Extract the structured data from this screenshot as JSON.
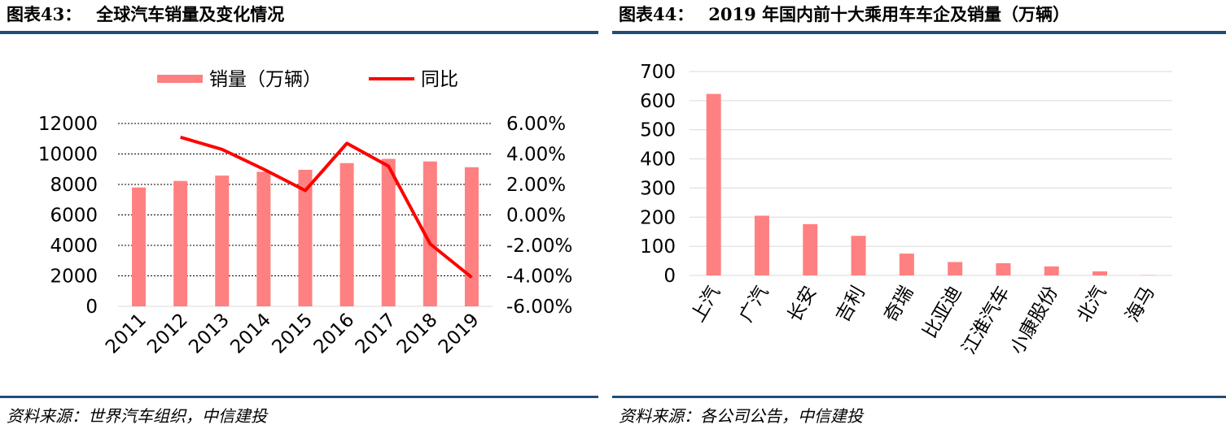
{
  "charts": [
    {
      "label": "图表43：",
      "title": "全球汽车销量及变化情况",
      "source": "资料来源：世界汽车组织，中信建投"
    },
    {
      "label": "图表44：",
      "title": "2019 年国内前十大乘用车车企及销量（万辆）",
      "source": "资料来源：各公司公告，中信建投"
    }
  ],
  "colors": {
    "bar": "#ff8080",
    "line": "#ff0000",
    "rule": "#1f4e79",
    "grid": "#000000"
  },
  "chart_data": [
    {
      "type": "bar",
      "title": "全球汽车销量及变化情况",
      "categories": [
        "2011",
        "2012",
        "2013",
        "2014",
        "2015",
        "2016",
        "2017",
        "2018",
        "2019"
      ],
      "series": [
        {
          "name": "销量（万辆）",
          "type": "bar",
          "axis": "left",
          "values": [
            7800,
            8230,
            8580,
            8830,
            8960,
            9400,
            9680,
            9510,
            9130
          ]
        },
        {
          "name": "同比",
          "type": "line",
          "axis": "right",
          "values": [
            null,
            5.1,
            4.3,
            3.0,
            1.6,
            4.7,
            3.2,
            -1.9,
            -4.1
          ]
        }
      ],
      "y_left": {
        "min": 0,
        "max": 12000,
        "ticks": [
          "0",
          "2000",
          "4000",
          "6000",
          "8000",
          "10000",
          "12000"
        ]
      },
      "y_right": {
        "min": -6,
        "max": 6,
        "ticks": [
          "-6.00%",
          "-4.00%",
          "-2.00%",
          "0.00%",
          "2.00%",
          "4.00%",
          "6.00%"
        ]
      },
      "legend": "top",
      "grid": true
    },
    {
      "type": "bar",
      "title": "2019 年国内前十大乘用车车企及销量（万辆）",
      "categories": [
        "上汽",
        "广汽",
        "长安",
        "吉利",
        "奇瑞",
        "比亚迪",
        "江淮汽车",
        "小康股份",
        "北汽",
        "海马"
      ],
      "values": [
        623,
        205,
        176,
        136,
        75,
        46,
        42,
        31,
        14,
        1
      ],
      "ylim": [
        0,
        700
      ],
      "yticks": [
        "0",
        "100",
        "200",
        "300",
        "400",
        "500",
        "600",
        "700"
      ],
      "grid": true
    }
  ]
}
